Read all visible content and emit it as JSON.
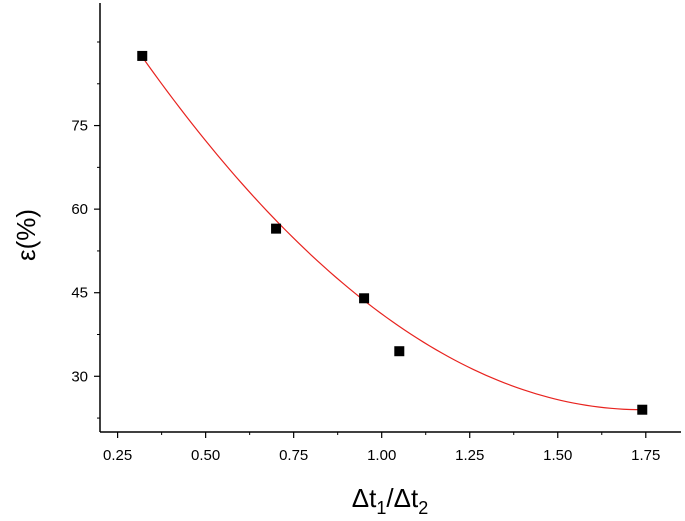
{
  "chart_data": {
    "type": "scatter",
    "xlabel": {
      "base1": "Δt",
      "sub1": "1",
      "slash": "/",
      "base2": "Δt",
      "sub2": "2"
    },
    "ylabel": "ε(%)",
    "xlim": [
      0.2,
      1.85
    ],
    "ylim": [
      20,
      97
    ],
    "xticks": [
      0.25,
      0.5,
      0.75,
      1.0,
      1.25,
      1.5,
      1.75
    ],
    "xtick_labels": [
      "0.25",
      "0.50",
      "0.75",
      "1.00",
      "1.25",
      "1.50",
      "1.75"
    ],
    "yticks": [
      30,
      45,
      60,
      75
    ],
    "ytick_labels": [
      "30",
      "45",
      "60",
      "75"
    ],
    "series": [
      {
        "marker": "square",
        "color": "#000000",
        "x": [
          0.32,
          0.7,
          0.95,
          1.05,
          1.74
        ],
        "y": [
          87.5,
          56.5,
          44.0,
          34.5,
          24.0
        ]
      }
    ],
    "fit_curve": {
      "type": "quadratic",
      "color": "#e8231f",
      "x_range": [
        0.32,
        1.74
      ],
      "vertex_x": 1.74,
      "vertex_y": 24.0,
      "a": 31.4
    },
    "grid": false,
    "legend": "none"
  }
}
